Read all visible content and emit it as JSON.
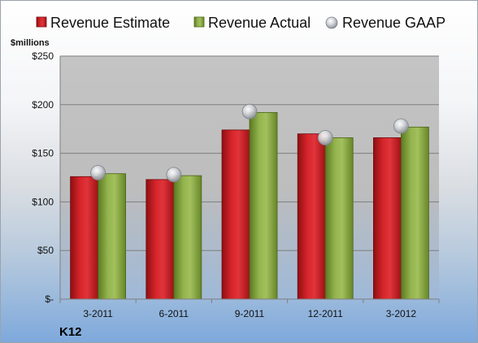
{
  "chart_data": {
    "type": "bar",
    "company": "K12",
    "ylabel": "$millions",
    "categories": [
      "3-2011",
      "6-2011",
      "9-2011",
      "12-2011",
      "3-2012"
    ],
    "series": [
      {
        "name": "Revenue Estimate",
        "type": "bar",
        "color": "#c8191e",
        "values": [
          126,
          123,
          174,
          170,
          166
        ]
      },
      {
        "name": "Revenue Actual",
        "type": "bar",
        "color": "#86a83e",
        "values": [
          129,
          127,
          192,
          166,
          177
        ]
      },
      {
        "name": "Revenue GAAP",
        "type": "marker",
        "color": "#b8bcc3",
        "values": [
          130,
          128,
          193,
          166,
          178
        ]
      }
    ],
    "ylim": [
      0,
      250
    ],
    "yticks": [
      0,
      50,
      100,
      150,
      200,
      250
    ],
    "ytick_labels": [
      "$-",
      "$50",
      "$100",
      "$150",
      "$200",
      "$250"
    ],
    "grid": true,
    "legend_position": "top"
  }
}
